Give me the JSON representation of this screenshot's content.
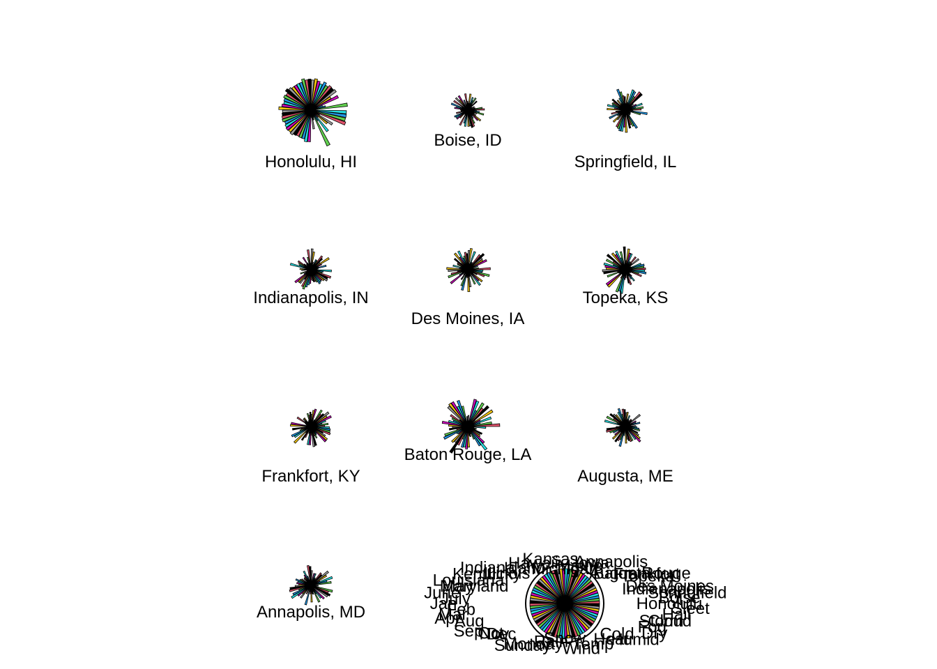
{
  "chart_data": {
    "type": "star",
    "layout": "4 rows x 3 columns of star glyphs; last panel is the key",
    "palette": [
      "#DF536B",
      "#61D04F",
      "#2297E6",
      "#28E2E5",
      "#CD0BBC",
      "#F5C710",
      "#9E9E9E",
      "#000000"
    ],
    "draw_segments": true,
    "glyphs": [
      {
        "label": "Honolulu, HI",
        "fill_ratio": 0.85
      },
      {
        "label": "Boise, ID",
        "fill_ratio": 0.3
      },
      {
        "label": "Springfield, IL",
        "fill_ratio": 0.45
      },
      {
        "label": "Indianapolis, IN",
        "fill_ratio": 0.4
      },
      {
        "label": "Des Moines, IA",
        "fill_ratio": 0.45
      },
      {
        "label": "Topeka, KS",
        "fill_ratio": 0.5
      },
      {
        "label": "Frankfort, KY",
        "fill_ratio": 0.45
      },
      {
        "label": "Baton Rouge, LA",
        "fill_ratio": 0.7
      },
      {
        "label": "Augusta, ME",
        "fill_ratio": 0.4
      },
      {
        "label": "Annapolis, MD",
        "fill_ratio": 0.45
      }
    ],
    "key": {
      "type": "full-circle segment key",
      "labels": [
        "Honolulu",
        "Boise",
        "Springfield",
        "Indianapolis",
        "Des Moines",
        "Topeka",
        "Frankfort",
        "Baton Rouge",
        "Augusta",
        "Annapolis",
        "Iowa",
        "Maine",
        "Michigan",
        "Kansas",
        "Hawaii",
        "Idaho",
        "Illinois",
        "Indiana",
        "Kentucky",
        "Louisiana",
        "Maryland",
        "May",
        "June",
        "July",
        "Jan",
        "Feb",
        "Mar",
        "Apr",
        "Aug",
        "Sep",
        "Oct",
        "Nov",
        "Dec",
        "Sunday",
        "Monday",
        "Rain",
        "Snow",
        "Wind",
        "Temp",
        "Heat",
        "Cold",
        "Humid",
        "Dry",
        "Fog",
        "Cloud",
        "Storm",
        "Hail",
        "Sleet"
      ]
    }
  }
}
